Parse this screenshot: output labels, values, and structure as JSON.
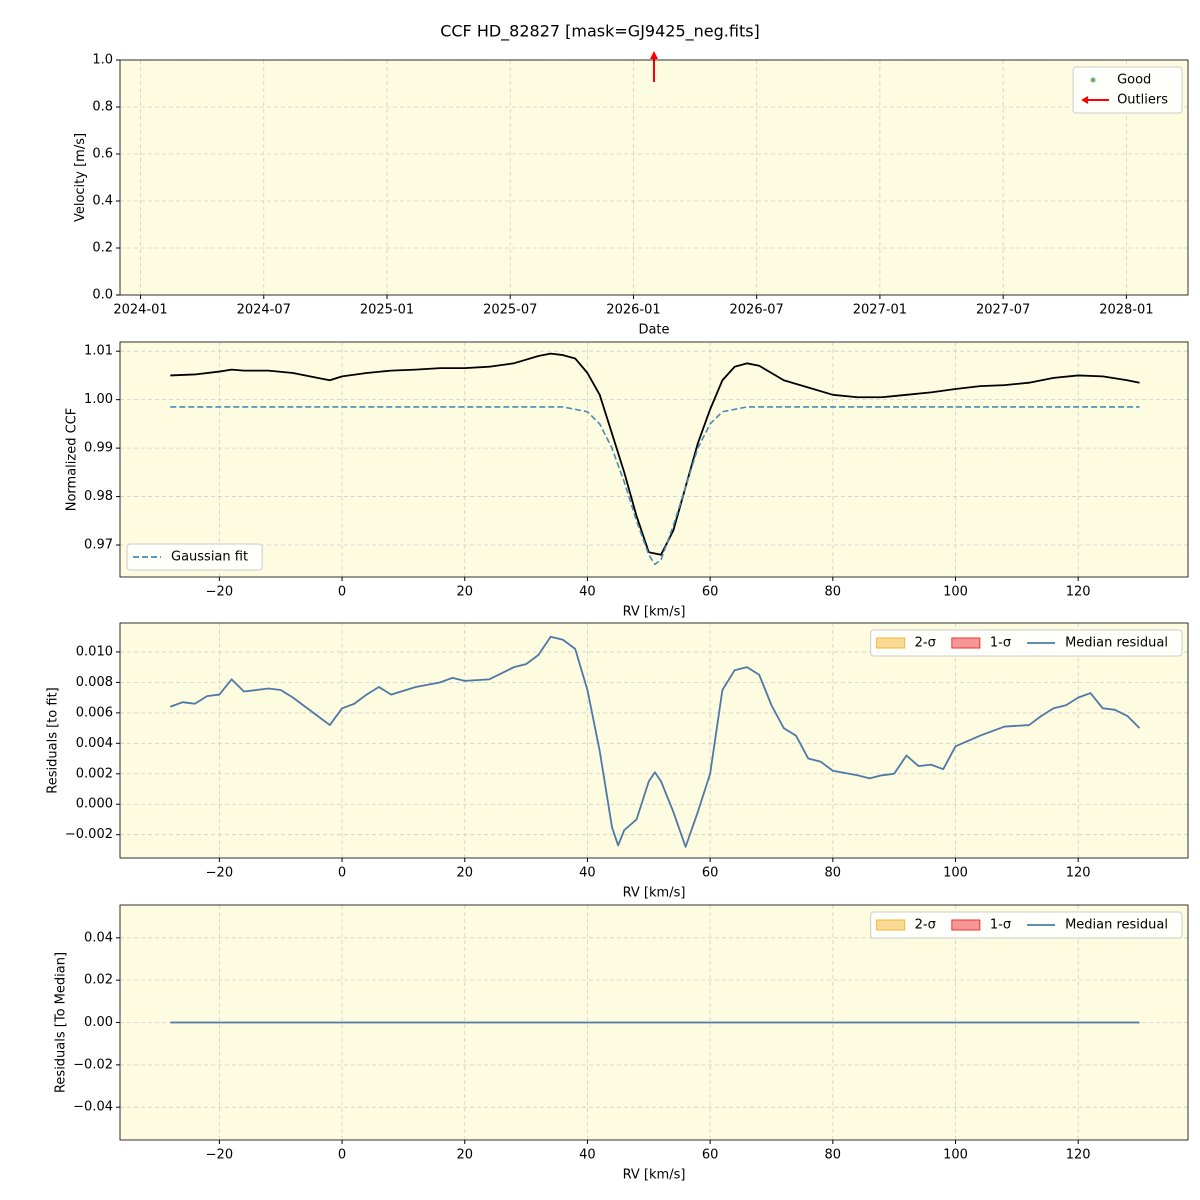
{
  "suptitle": "CCF HD_82827 [mask=GJ9425_neg.fits]",
  "chart_data": [
    {
      "type": "scatter",
      "xlabel": "Date",
      "ylabel": "Velocity [m/s]",
      "xlim": [
        "2023-12",
        "2028-04"
      ],
      "xticks": [
        "2024-01",
        "2024-07",
        "2025-01",
        "2025-07",
        "2026-01",
        "2026-07",
        "2027-01",
        "2027-07",
        "2028-01"
      ],
      "ylim": [
        0,
        1
      ],
      "yticks": [
        {
          "value": 0,
          "label": "0.0"
        },
        0.2,
        0.4,
        0.6,
        0.8,
        {
          "value": 1,
          "label": "1.0"
        }
      ],
      "grid": true,
      "legend": "upper right",
      "legend_columns": 1,
      "series": [
        {
          "name": "Good",
          "color": "#6bb36b",
          "marker": "o",
          "x": [],
          "values": []
        },
        {
          "name": "Outliers",
          "color": "#ff0000",
          "marker": "arrow",
          "x": [
            "2026-02"
          ]
        }
      ]
    },
    {
      "type": "line",
      "xlabel": "RV [km/s]",
      "ylabel": "Normalized CCF",
      "xlim": [
        -36.2,
        137.9
      ],
      "xticks": [
        {
          "value": -20,
          "label": "−20"
        },
        0,
        20,
        40,
        60,
        80,
        100,
        120
      ],
      "ylim": [
        0.9634,
        1.0119
      ],
      "yticks": [
        0.97,
        0.98,
        0.99,
        {
          "value": 1,
          "label": "1.00"
        },
        1.01
      ],
      "grid": true,
      "legend": "lower left",
      "legend_columns": 1,
      "series": [
        {
          "color": "#000000",
          "x": [
            -28,
            -24,
            -20,
            -18,
            -16,
            -12,
            -8,
            -4,
            -2,
            0,
            4,
            8,
            12,
            16,
            20,
            24,
            28,
            32,
            34,
            36,
            38,
            40,
            42,
            44,
            46,
            48,
            50,
            52,
            54,
            56,
            58,
            60,
            62,
            64,
            66,
            68,
            70,
            72,
            76,
            80,
            84,
            88,
            92,
            96,
            100,
            104,
            108,
            112,
            116,
            120,
            124,
            128,
            130
          ],
          "values": [
            1.005,
            1.0052,
            1.0058,
            1.0062,
            1.006,
            1.006,
            1.0055,
            1.0045,
            1.004,
            1.0048,
            1.0055,
            1.006,
            1.0062,
            1.0065,
            1.0065,
            1.0068,
            1.0075,
            1.009,
            1.0095,
            1.0092,
            1.0085,
            1.0055,
            1.001,
            0.993,
            0.985,
            0.976,
            0.9685,
            0.968,
            0.973,
            0.982,
            0.991,
            0.998,
            1.004,
            1.0068,
            1.0075,
            1.007,
            1.0055,
            1.004,
            1.0025,
            1.001,
            1.0005,
            1.0005,
            1.001,
            1.0015,
            1.0022,
            1.0028,
            1.003,
            1.0035,
            1.0045,
            1.005,
            1.0048,
            1.004,
            1.0035
          ]
        },
        {
          "name": "Gaussian fit",
          "color": "#4a8bb5",
          "style": "dashed",
          "x": [
            -28,
            36,
            40,
            42,
            44,
            46,
            48,
            50,
            51,
            52,
            54,
            56,
            58,
            60,
            62,
            66,
            130
          ],
          "values": [
            0.9985,
            0.9985,
            0.9975,
            0.995,
            0.99,
            0.983,
            0.975,
            0.968,
            0.966,
            0.967,
            0.974,
            0.982,
            0.99,
            0.995,
            0.9975,
            0.9985,
            0.9985
          ]
        }
      ]
    },
    {
      "type": "line",
      "xlabel": "RV [km/s]",
      "ylabel": "Residuals [to fit]",
      "xlim": [
        -36.2,
        137.9
      ],
      "xticks": [
        {
          "value": -20,
          "label": "−20"
        },
        0,
        20,
        40,
        60,
        80,
        100,
        120
      ],
      "ylim": [
        -0.00353,
        0.0119
      ],
      "yticks": [
        {
          "value": -0.002,
          "label": "−0.002"
        },
        {
          "value": 0,
          "label": "0.000"
        },
        0.002,
        0.004,
        0.006,
        0.008,
        {
          "value": 0.01,
          "label": "0.010"
        }
      ],
      "grid": true,
      "legend": "upper right",
      "legend_columns": 3,
      "series": [
        {
          "name": "2-σ",
          "color": "#f5b731",
          "kind": "band"
        },
        {
          "name": "1-σ",
          "color": "#f03030",
          "kind": "band"
        },
        {
          "name": "Median residual",
          "color": "#4e79a7",
          "x": [
            -28,
            -26,
            -24,
            -22,
            -20,
            -18,
            -16,
            -12,
            -10,
            -8,
            -6,
            -4,
            -2,
            0,
            2,
            4,
            6,
            8,
            12,
            16,
            18,
            20,
            24,
            28,
            30,
            32,
            34,
            36,
            38,
            40,
            42,
            44,
            45,
            46,
            48,
            50,
            51,
            52,
            54,
            56,
            58,
            60,
            62,
            64,
            66,
            68,
            70,
            72,
            74,
            76,
            78,
            80,
            84,
            86,
            88,
            90,
            92,
            94,
            96,
            98,
            100,
            104,
            108,
            112,
            114,
            116,
            118,
            120,
            122,
            124,
            126,
            128,
            130
          ],
          "values": [
            0.0064,
            0.0067,
            0.0066,
            0.0071,
            0.0072,
            0.0082,
            0.0074,
            0.0076,
            0.0075,
            0.007,
            0.0064,
            0.0058,
            0.0052,
            0.0063,
            0.0066,
            0.0072,
            0.0077,
            0.0072,
            0.0077,
            0.008,
            0.0083,
            0.0081,
            0.0082,
            0.009,
            0.0092,
            0.0098,
            0.011,
            0.0108,
            0.0102,
            0.0075,
            0.0035,
            -0.0015,
            -0.0027,
            -0.0017,
            -0.001,
            0.0015,
            0.0021,
            0.0015,
            -0.0005,
            -0.0028,
            -0.0005,
            0.002,
            0.0075,
            0.0088,
            0.009,
            0.0085,
            0.0065,
            0.005,
            0.0045,
            0.003,
            0.0028,
            0.0022,
            0.0019,
            0.0017,
            0.0019,
            0.002,
            0.0032,
            0.0025,
            0.0026,
            0.0023,
            0.0038,
            0.0045,
            0.0051,
            0.0052,
            0.0058,
            0.0063,
            0.0065,
            0.007,
            0.0073,
            0.0063,
            0.0062,
            0.0058,
            0.005
          ]
        }
      ]
    },
    {
      "type": "line",
      "xlabel": "RV [km/s]",
      "ylabel": "Residuals [To Median]",
      "xlim": [
        -36.2,
        137.9
      ],
      "xticks": [
        {
          "value": -20,
          "label": "−20"
        },
        0,
        20,
        40,
        60,
        80,
        100,
        120
      ],
      "ylim": [
        -0.0555,
        0.0555
      ],
      "yticks": [
        {
          "value": -0.04,
          "label": "−0.04"
        },
        {
          "value": -0.02,
          "label": "−0.02"
        },
        {
          "value": 0,
          "label": "0.00"
        },
        0.02,
        0.04
      ],
      "grid": true,
      "legend": "upper right",
      "legend_columns": 3,
      "series": [
        {
          "name": "2-σ",
          "color": "#f5b731",
          "kind": "band"
        },
        {
          "name": "1-σ",
          "color": "#f03030",
          "kind": "band"
        },
        {
          "name": "Median residual",
          "color": "#4e79a7",
          "x": [
            -28,
            130
          ],
          "values": [
            0,
            0
          ]
        }
      ]
    }
  ]
}
